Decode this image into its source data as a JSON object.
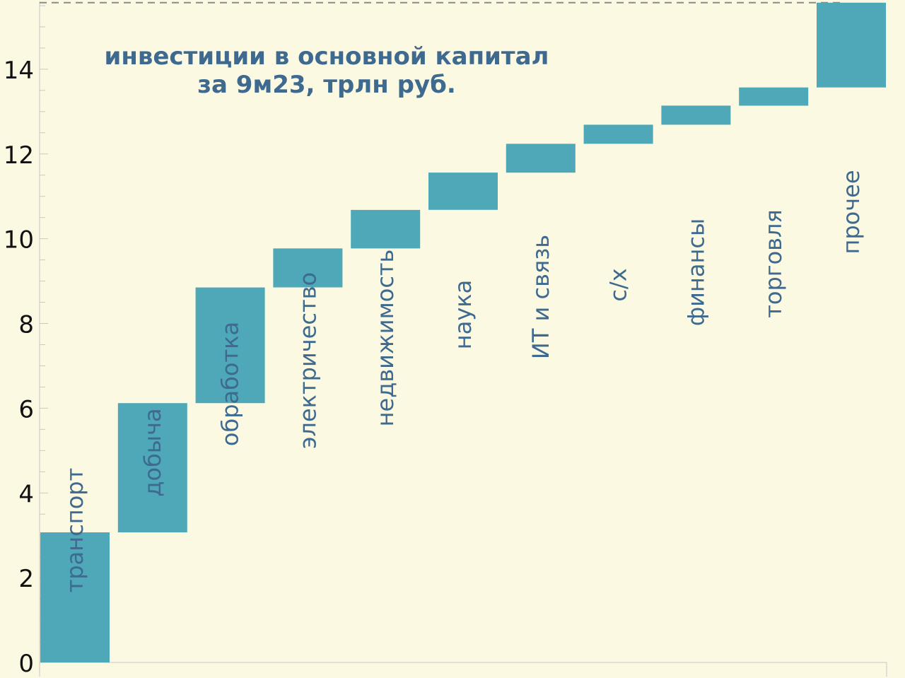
{
  "chart_data": {
    "type": "bar",
    "variant": "waterfall",
    "title_lines": [
      "инвестиции в основной капитал",
      "за 9м23, трлн руб."
    ],
    "categories": [
      "транспорт",
      "добыча",
      "обработка",
      "электричество",
      "недвижимость",
      "наука",
      "ИТ и связь",
      "с/х",
      "финансы",
      "торговля",
      "прочее"
    ],
    "values": [
      3.07,
      3.05,
      2.73,
      0.92,
      0.91,
      0.88,
      0.68,
      0.45,
      0.45,
      0.43,
      2.0
    ],
    "cumulative_end": [
      3.07,
      6.12,
      8.85,
      9.77,
      10.68,
      11.56,
      12.24,
      12.69,
      13.14,
      13.57,
      15.57
    ],
    "total": 15.57,
    "ylim": [
      0,
      15.6
    ],
    "yticks": [
      0,
      2,
      4,
      6,
      8,
      10,
      12,
      14
    ],
    "minor_tick_step": 0.5,
    "grid": false,
    "total_line": "dashed",
    "colors": {
      "bar": "#4ea8b8",
      "text": "#3e6a8f",
      "axis_text": "#111111",
      "axis": "#c8c8c8",
      "dashed_line": "#8a8a8a",
      "background": "#fcf9e3"
    }
  }
}
